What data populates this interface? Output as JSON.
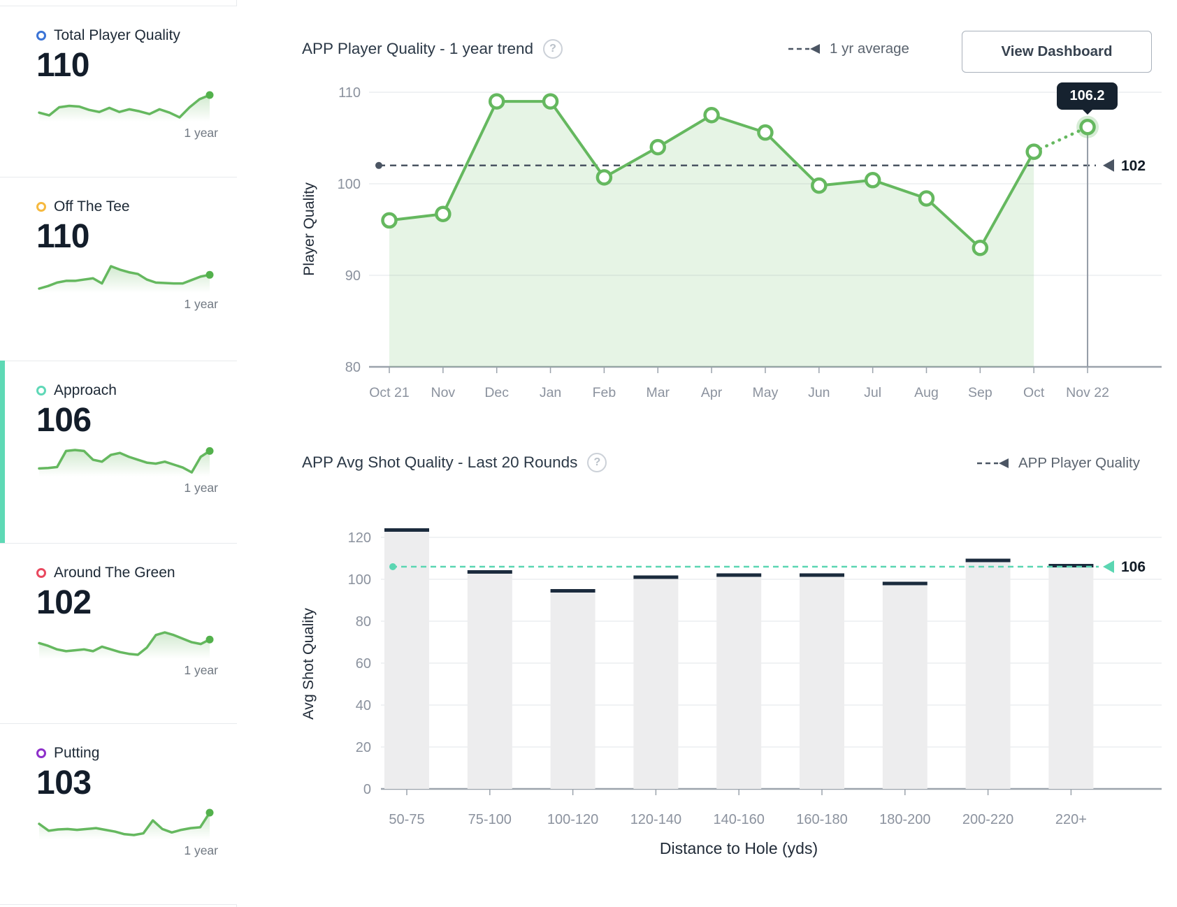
{
  "colors": {
    "green_line": "#65b85f",
    "green_dot": "#53b14c",
    "green_fill": "rgba(102,184,95,0.16)",
    "halo": "rgba(102,184,95,0.26)",
    "slate_dash": "#4b5563",
    "teal_accent": "#5ed9b5",
    "teal_line": "#5bd6b2",
    "grid": "#eceef1",
    "axis": "#9ba3ac",
    "tick_text": "#8b929e",
    "axis_title_text": "#222c39",
    "marker_label_text": "#111b26",
    "bar_fill": "#ededee",
    "bar_cap": "#1b2b3d",
    "tooltip_bg": "#16222f"
  },
  "sidebar": {
    "cards": [
      {
        "label": "Total Player Quality",
        "value": "110",
        "period": "1 year",
        "icon": "ring-icon",
        "icon_color": "#3b74d6",
        "selected": false,
        "spark": [
          44,
          40,
          52,
          54,
          53,
          48,
          45,
          51,
          45,
          49,
          46,
          42,
          49,
          44,
          37,
          52,
          64,
          70
        ]
      },
      {
        "label": "Off The Tee",
        "value": "110",
        "period": "1 year",
        "icon": "ring-icon",
        "icon_color": "#f6b93f",
        "selected": false,
        "spark": [
          12,
          18,
          26,
          30,
          30,
          33,
          36,
          24,
          64,
          56,
          50,
          46,
          33,
          26,
          25,
          24,
          24,
          32,
          40,
          44
        ]
      },
      {
        "label": "Approach",
        "value": "106",
        "period": "1 year",
        "icon": "ring-icon",
        "icon_color": "#5fd8b7",
        "selected": true,
        "spark": [
          22,
          23,
          25,
          58,
          60,
          58,
          40,
          36,
          50,
          54,
          46,
          40,
          34,
          32,
          36,
          30,
          24,
          14,
          46,
          58
        ]
      },
      {
        "label": "Around The Green",
        "value": "102",
        "period": "1 year",
        "icon": "ring-icon",
        "icon_color": "#e9495f",
        "selected": false,
        "spark": [
          48,
          42,
          34,
          30,
          32,
          34,
          30,
          40,
          34,
          28,
          24,
          22,
          38,
          66,
          72,
          66,
          58,
          50,
          46,
          56
        ]
      },
      {
        "label": "Putting",
        "value": "103",
        "period": "1 year",
        "icon": "ring-icon",
        "icon_color": "#8e30ca",
        "selected": false,
        "spark": [
          48,
          32,
          35,
          36,
          34,
          36,
          38,
          34,
          30,
          24,
          22,
          26,
          56,
          36,
          28,
          34,
          38,
          40,
          74
        ]
      }
    ]
  },
  "trend_section": {
    "title": "APP Player Quality - 1 year trend",
    "help_icon": "?",
    "legend_label": "1 yr average",
    "button_label": "View Dashboard",
    "tooltip_value": "106.2"
  },
  "bars_section": {
    "title": "APP Avg Shot Quality - Last 20 Rounds",
    "help_icon": "?",
    "legend_label": "APP Player Quality"
  },
  "chart_data": [
    {
      "type": "line",
      "title": "APP Player Quality - 1 year trend",
      "x": [
        "Oct 21",
        "Nov",
        "Dec",
        "Jan",
        "Feb",
        "Mar",
        "Apr",
        "May",
        "Jun",
        "Jul",
        "Aug",
        "Sep",
        "Oct",
        "Nov 22"
      ],
      "series": [
        {
          "name": "APP Player Quality",
          "values": [
            96,
            96.7,
            109,
            109,
            100.7,
            104,
            107.5,
            105.6,
            99.8,
            100.4,
            98.4,
            93,
            103.5,
            106.2
          ]
        }
      ],
      "average_line": {
        "label": "1 yr average",
        "value": 102
      },
      "highlight": {
        "x": "Nov 22",
        "value": 106.2,
        "tooltip": "106.2"
      },
      "dotted_last_segment": true,
      "ylabel": "Player Quality",
      "ylim": [
        80,
        110
      ],
      "yticks": [
        80,
        90,
        100,
        110
      ],
      "grid": true,
      "legend_position": "top-right"
    },
    {
      "type": "bar",
      "title": "APP Avg Shot Quality - Last 20 Rounds",
      "categories": [
        "50-75",
        "75-100",
        "100-120",
        "120-140",
        "140-160",
        "160-180",
        "180-200",
        "200-220",
        "220+"
      ],
      "values": [
        123.5,
        103.5,
        94.5,
        101,
        102,
        102,
        98,
        109,
        106.5
      ],
      "reference_line": {
        "label": "APP Player Quality",
        "value": 106
      },
      "xlabel": "Distance to Hole (yds)",
      "ylabel": "Avg Shot Quality",
      "ylim": [
        0,
        130
      ],
      "yticks": [
        0,
        20,
        40,
        60,
        80,
        100,
        120
      ],
      "grid": true,
      "legend_position": "top-right"
    }
  ]
}
